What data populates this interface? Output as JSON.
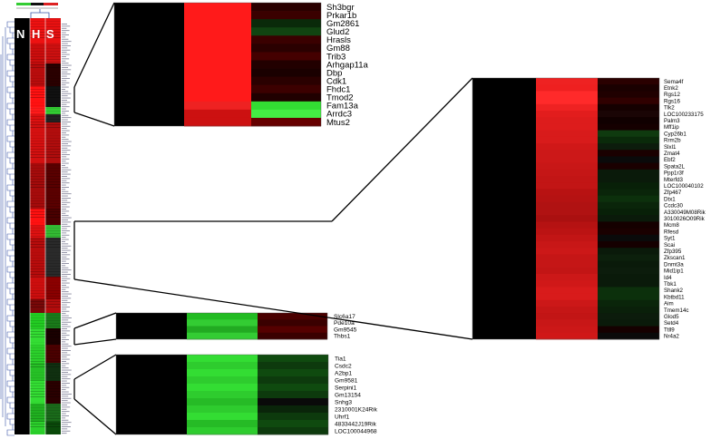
{
  "column_headers": [
    "N",
    "H",
    "S"
  ],
  "panels": {
    "top_right_zoom": {
      "genes": [
        "Sh3bgr",
        "Prkar1b",
        "Gm2861",
        "Glud2",
        "Hrasls",
        "Gm88",
        "Trib3",
        "Arhgap11a",
        "Dbp",
        "Cdk1",
        "Fhdc1",
        "Tmod2",
        "Fam13a",
        "Arrdc3",
        "Mtus2"
      ],
      "s_colors": [
        "#2a0000",
        "#3a0000",
        "#0a2a0a",
        "#114411",
        "#3a0000",
        "#2a0000",
        "#440000",
        "#220000",
        "#1a0000",
        "#2a0000",
        "#3c0000",
        "#200000",
        "#33dd33",
        "#44ee44",
        "#660000"
      ],
      "h_colors": [
        "#ff1a1a",
        "#ff1a1a",
        "#ff1a1a",
        "#ff1a1a",
        "#ff1a1a",
        "#ff1a1a",
        "#ff1a1a",
        "#ff1a1a",
        "#ff1a1a",
        "#ff1a1a",
        "#ff1a1a",
        "#ff1a1a",
        "#ee2222",
        "#cc1111",
        "#cc1111"
      ]
    },
    "right_zoom": {
      "genes": [
        "Sema4f",
        "Etnk2",
        "Rgs12",
        "Rgs16",
        "Tlk2",
        "LOC100233175",
        "Palm3",
        "Mff1ip",
        "Cyp26b1",
        "Rrm2b",
        "Slxl1",
        "Zmat4",
        "Ebf2",
        "Spata2L",
        "Ppp1r3f",
        "Mterfd3",
        "LOC100040102",
        "Zfp467",
        "Dtx1",
        "Ccdc30",
        "A330049M08Rik",
        "3010026O09Rik",
        "Mcm8",
        "Rfesd",
        "Syt1",
        "Scai",
        "Zfp395",
        "Zkscan1",
        "Dnmt3a",
        "Mid1ip1",
        "Id4",
        "Tbk1",
        "Shank2",
        "Kbtbd11",
        "Aim",
        "Tmem14c",
        "Glod5",
        "Setd4",
        "Ttll9",
        "Nr4a2"
      ],
      "h_colors": [
        "#ee2222",
        "#ee2020",
        "#ff2a2a",
        "#ff2a2a",
        "#ee2222",
        "#e21d1d",
        "#dd1c1c",
        "#dd1c1c",
        "#d81b1b",
        "#d81b1b",
        "#d01818",
        "#cc1818",
        "#cc1818",
        "#c81717",
        "#c51616",
        "#c21515",
        "#c21515",
        "#b81212",
        "#b51212",
        "#b01212",
        "#b01212",
        "#aa1010",
        "#b51212",
        "#bb1313",
        "#c21515",
        "#c81717",
        "#cc1818",
        "#c51616",
        "#c51616",
        "#c21515",
        "#cc1818",
        "#d01818",
        "#d81b1b",
        "#d81b1b",
        "#cc1818",
        "#c51616",
        "#c21515",
        "#c81717",
        "#cc1818",
        "#d01818"
      ],
      "s_colors": [
        "#2a0000",
        "#1a0000",
        "#200000",
        "#300000",
        "#150000",
        "#1a0505",
        "#100000",
        "#150000",
        "#0f3a0f",
        "#0a2a0a",
        "#0c1c0c",
        "#1a0000",
        "#0a0a0a",
        "#1a0000",
        "#0a1a0a",
        "#0a1a0a",
        "#082008",
        "#0a250a",
        "#0c300c",
        "#0a250a",
        "#082008",
        "#0a1a0a",
        "#150000",
        "#1a0000",
        "#0a0a0a",
        "#150000",
        "#0a1a0a",
        "#0c200c",
        "#0a1a0a",
        "#0c1c0c",
        "#0a1a0a",
        "#0a1a0a",
        "#0c300c",
        "#0c300c",
        "#0a250a",
        "#0a200a",
        "#0c1c0c",
        "#0a1a0a",
        "#150000",
        "#0a0a0a"
      ]
    },
    "mid_small_zoom": {
      "genes": [
        "Slc6a17",
        "Pde10a",
        "Gm9545",
        "Thbs1"
      ],
      "h_colors": [
        "#22bb22",
        "#33cc33",
        "#22aa22",
        "#33cc33"
      ],
      "s_colors": [
        "#4a0000",
        "#3a0000",
        "#550000",
        "#3a0000"
      ]
    },
    "bottom_zoom": {
      "genes": [
        "Tia1",
        "Csdc2",
        "A2bp1",
        "Gm9581",
        "Serpini1",
        "Gm13154",
        "Snhg3",
        "2310001K24Rik",
        "Uhrf1",
        "4833442J19Rik",
        "LOC100044968"
      ],
      "h_colors": [
        "#33dd33",
        "#2ecc2e",
        "#33dd33",
        "#2ecc2e",
        "#33dd33",
        "#2ecc2e",
        "#26bb26",
        "#2ecc2e",
        "#33dd33",
        "#26bb26",
        "#2ecc2e"
      ],
      "s_colors": [
        "#0f4a0f",
        "#0d3a0d",
        "#0f4a0f",
        "#0d3a0d",
        "#0f4a0f",
        "#0d3a0d",
        "#0a0a0a",
        "#0a250a",
        "#0d3a0d",
        "#0f4a0f",
        "#0d3a0d"
      ]
    }
  },
  "colors": {
    "up": "#ff0000",
    "down": "#00ff00",
    "neutral": "#000000",
    "dendrogram": "#3a56a8"
  }
}
